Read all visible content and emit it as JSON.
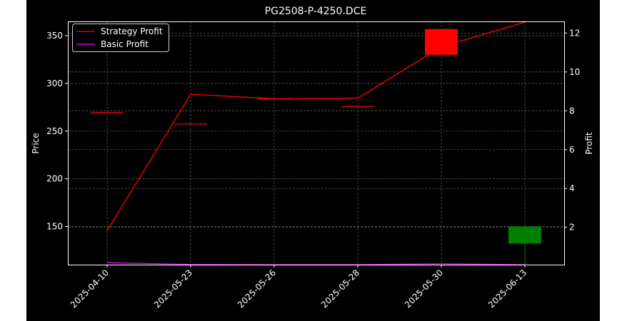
{
  "chart_data": {
    "type": "candlestick+line",
    "title": "PG2508-P-4250.DCE",
    "xlabel": "",
    "ylabel": "Price",
    "y2label": "Profit",
    "categories": [
      "2025-04-10",
      "2025-05-23",
      "2025-05-26",
      "2025-05-28",
      "2025-05-30",
      "2025-06-13"
    ],
    "ylim": [
      110,
      365
    ],
    "y_ticks": [
      150,
      200,
      250,
      300,
      350
    ],
    "y2lim": [
      0.08,
      12.6
    ],
    "y2_ticks": [
      2,
      4,
      6,
      8,
      10,
      12
    ],
    "grid": true,
    "legend_position": "top-left",
    "candles": [
      {
        "date": "2025-04-10",
        "open": 270,
        "high": 270,
        "low": 270,
        "close": 270,
        "color": "#ff0000"
      },
      {
        "date": "2025-05-23",
        "open": 258,
        "high": 258,
        "low": 258,
        "close": 258,
        "color": "#ff0000"
      },
      {
        "date": "2025-05-26",
        "open": 284,
        "high": 284,
        "low": 284,
        "close": 284,
        "color": "#ff0000"
      },
      {
        "date": "2025-05-28",
        "open": 276,
        "high": 276,
        "low": 276,
        "close": 276,
        "color": "#ff0000"
      },
      {
        "date": "2025-05-30",
        "open": 357,
        "high": 357,
        "low": 330,
        "close": 330,
        "color": "#ff0000"
      },
      {
        "date": "2025-06-13",
        "open": 132,
        "high": 150,
        "low": 110,
        "close": 150,
        "color": "#008000"
      }
    ],
    "series": [
      {
        "name": "Strategy Profit",
        "axis": "right",
        "color": "#ff0000",
        "values": [
          1.82,
          8.85,
          8.62,
          8.65,
          11.3,
          12.56
        ]
      },
      {
        "name": "Basic Profit",
        "axis": "right",
        "color": "#ff00ff",
        "values": [
          0.18,
          0.09,
          0.08,
          0.08,
          0.12,
          0.08
        ]
      }
    ]
  }
}
